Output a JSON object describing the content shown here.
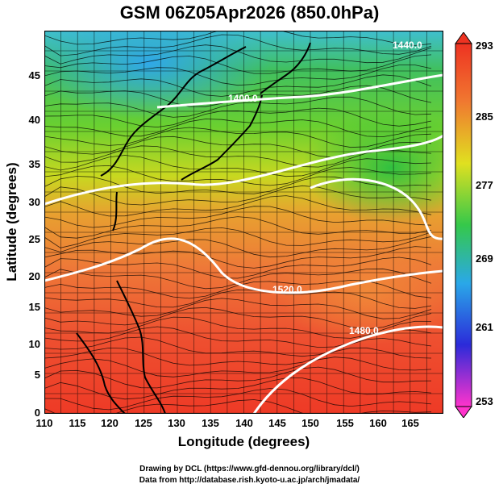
{
  "title": "GSM 06Z05Apr2026 (850.0hPa)",
  "axes": {
    "xlabel": "Longitude (degrees)",
    "ylabel": "Latitude  (degrees)",
    "xticks": [
      "110",
      "115",
      "120",
      "125",
      "130",
      "135",
      "140",
      "145",
      "150",
      "155",
      "160",
      "165"
    ],
    "yticks": [
      "0",
      "5",
      "10",
      "15",
      "20",
      "25",
      "30",
      "35",
      "40",
      "45"
    ]
  },
  "colorbar": {
    "ticks": [
      "253",
      "261",
      "269",
      "277",
      "285",
      "293"
    ],
    "colors": [
      "#ff33cc",
      "#2b2bd9",
      "#2aa8e8",
      "#35c84a",
      "#e0e020",
      "#f07830",
      "#ee3322"
    ]
  },
  "contours": [
    {
      "label": "1440.0"
    },
    {
      "label": "1400.0"
    },
    {
      "label": "1520.0"
    },
    {
      "label": "1480.0"
    }
  ],
  "credits": [
    "Drawing by DCL (https://www.gfd-dennou.org/library/dcl/)",
    "Data from http://database.rish.kyoto-u.ac.jp/arch/jmadata/"
  ]
}
